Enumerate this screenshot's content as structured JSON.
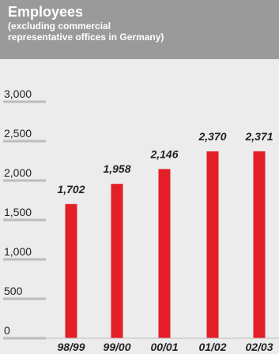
{
  "title": "Employees",
  "subtitle_line1": "(excluding commercial",
  "subtitle_line2": "representative offices in Germany)",
  "colors": {
    "header": "#9a9a9a",
    "plot_bg": "#ececec",
    "bar": "#e41e26",
    "gridline": "#bdbdbd"
  },
  "chart_data": {
    "type": "bar",
    "title": "Employees",
    "subtitle": "(excluding commercial representative offices in Germany)",
    "categories": [
      "98/99",
      "99/00",
      "00/01",
      "01/02",
      "02/03"
    ],
    "values": [
      1702,
      1958,
      2146,
      2370,
      2371
    ],
    "value_labels": [
      "1,702",
      "1,958",
      "2,146",
      "2,370",
      "2,371"
    ],
    "yticks": [
      0,
      500,
      1000,
      1500,
      2000,
      2500,
      3000
    ],
    "ytick_labels": [
      "0",
      "500",
      "1,000",
      "1,500",
      "2,000",
      "2,500",
      "3,000"
    ],
    "ylim": [
      0,
      3000
    ],
    "xlabel": "",
    "ylabel": "",
    "grid": false,
    "legend": "none"
  }
}
